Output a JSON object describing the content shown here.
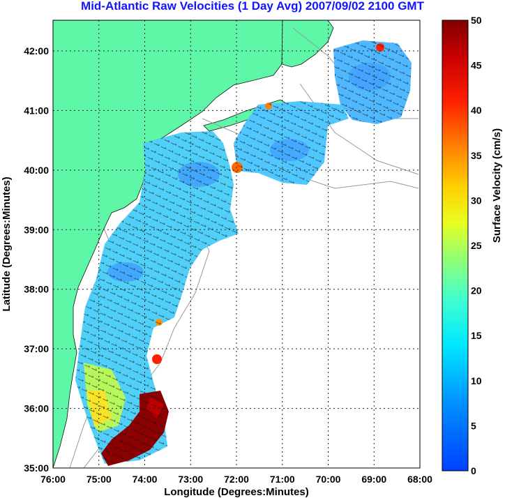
{
  "title": "Mid-Atlantic Raw Velocities (1 Day Avg) 2007/09/02 2100 GMT",
  "axes": {
    "xlabel": "Longitude (Degrees:Minutes)",
    "ylabel": "Latitude (Degrees:Minutes)",
    "xticks": [
      "76:00",
      "75:00",
      "74:00",
      "73:00",
      "72:00",
      "71:00",
      "70:00",
      "69:00",
      "68:00"
    ],
    "yticks": [
      "42:00",
      "41:00",
      "40:00",
      "39:00",
      "38:00",
      "37:00",
      "36:00",
      "35:00"
    ]
  },
  "colorbar": {
    "label": "Surface Velocity (cm/s)",
    "ticks": [
      "50",
      "45",
      "40",
      "35",
      "30",
      "25",
      "20",
      "15",
      "10",
      "5",
      "0"
    ],
    "range": [
      0,
      50
    ]
  },
  "colors": {
    "land": "#5ef7a8",
    "ocean_background": "#ffffff",
    "title_color": "#1414ff"
  }
}
